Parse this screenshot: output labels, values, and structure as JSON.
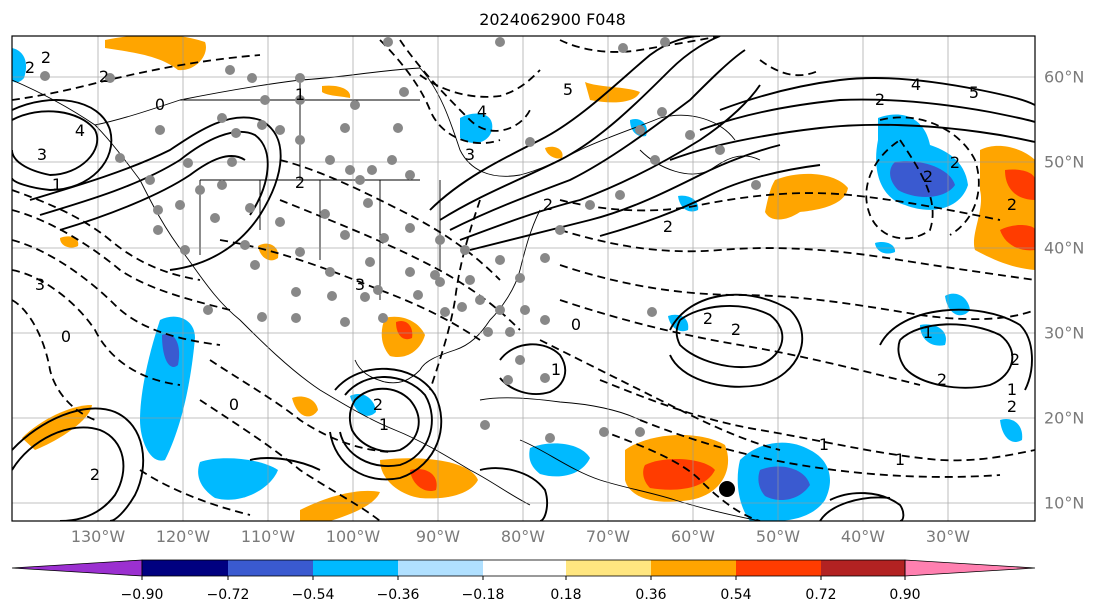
{
  "title": "2024062900 F048",
  "lon_labels": [
    "130°W",
    "120°W",
    "110°W",
    "100°W",
    "90°W",
    "80°W",
    "70°W",
    "60°W",
    "50°W",
    "40°W",
    "30°W"
  ],
  "lat_labels": [
    "60°N",
    "50°N",
    "40°N",
    "30°N",
    "20°N",
    "10°N"
  ],
  "colorbar": {
    "tick_labels": [
      "−0.90",
      "−0.72",
      "−0.54",
      "−0.36",
      "−0.18",
      "0.18",
      "0.36",
      "0.54",
      "0.72",
      "0.90"
    ],
    "colors": [
      "#9b30d0",
      "#000080",
      "#3a5ad0",
      "#00baff",
      "#b0e0ff",
      "#ffffff",
      "#ffe680",
      "#ffa500",
      "#ff3c00",
      "#b22222",
      "#ff80b0"
    ]
  },
  "fill_colors": {
    "light_blue": "#b0e0ff",
    "cyan": "#00baff",
    "blue": "#3a5ad0",
    "yellow": "#ffe680",
    "orange": "#ffa500",
    "red": "#ff3c00"
  },
  "contour_labels": [
    "2",
    "2",
    "0",
    "1",
    "3",
    "4",
    "2",
    "4",
    "3",
    "5",
    "4",
    "5",
    "2",
    "2",
    "2",
    "2",
    "2",
    "2",
    "3",
    "1",
    "0",
    "3",
    "2",
    "0",
    "2",
    "1",
    "0",
    "2",
    "2",
    "1",
    "2",
    "2",
    "1",
    "1",
    "1",
    "2",
    "2",
    "1"
  ],
  "marker": "black dot"
}
